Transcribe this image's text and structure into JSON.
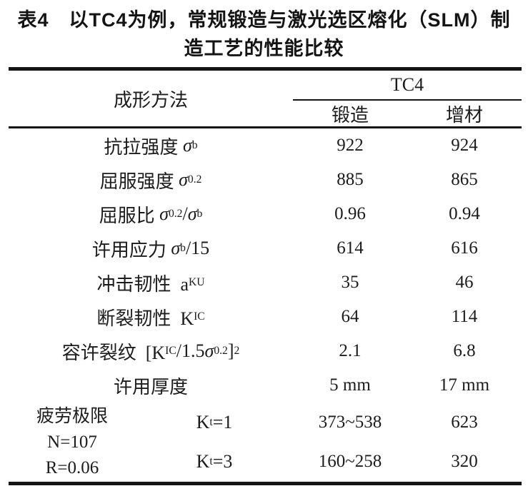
{
  "title": {
    "line1": "表4　以TC4为例，常规锻造与激光选区熔化（SLM）制",
    "line2": "造工艺的性能比较"
  },
  "header": {
    "method": "成形方法",
    "group": "TC4",
    "col_forge": "锻造",
    "col_additive": "增材"
  },
  "rows": [
    {
      "label": [
        {
          "t": "抗拉强度 "
        },
        {
          "t": "σ",
          "i": true
        },
        {
          "t": "b",
          "sub": true
        }
      ],
      "forge": "922",
      "additive": "924"
    },
    {
      "label": [
        {
          "t": "屈服强度 "
        },
        {
          "t": "σ",
          "i": true
        },
        {
          "t": "0.2",
          "sub": true
        }
      ],
      "forge": "885",
      "additive": "865"
    },
    {
      "label": [
        {
          "t": "屈服比 "
        },
        {
          "t": "σ",
          "i": true
        },
        {
          "t": "0.2",
          "sub": true
        },
        {
          "t": "/"
        },
        {
          "t": "σ",
          "i": true
        },
        {
          "t": "b",
          "sub": true
        }
      ],
      "forge": "0.96",
      "additive": "0.94"
    },
    {
      "label": [
        {
          "t": "许用应力 "
        },
        {
          "t": "σ",
          "i": true
        },
        {
          "t": "b",
          "sub": true
        },
        {
          "t": "/15"
        }
      ],
      "forge": "614",
      "additive": "616"
    },
    {
      "label": [
        {
          "t": "冲击韧性  a"
        },
        {
          "t": "KU",
          "sub": true
        }
      ],
      "forge": "35",
      "additive": "46"
    },
    {
      "label": [
        {
          "t": "断裂韧性  K"
        },
        {
          "t": "IC",
          "sub": true
        }
      ],
      "forge": "64",
      "additive": "114"
    },
    {
      "label": [
        {
          "t": "容许裂纹  [K"
        },
        {
          "t": "IC",
          "sub": true
        },
        {
          "t": "/1.5"
        },
        {
          "t": "σ",
          "i": true
        },
        {
          "t": "0.2",
          "sub": true
        },
        {
          "t": "]"
        },
        {
          "t": "2",
          "sup": true
        }
      ],
      "forge": "2.1",
      "additive": "6.8"
    },
    {
      "label": [
        {
          "t": "许用厚度"
        }
      ],
      "forge": "5 mm",
      "additive": "17 mm"
    }
  ],
  "fatigue": {
    "name_line1": "疲劳极限",
    "name_line2": "N=107",
    "name_line3": "R=0.06",
    "cases": [
      {
        "condition": [
          {
            "t": "K"
          },
          {
            "t": "t",
            "sub": true
          },
          {
            "t": "=1"
          }
        ],
        "forge": "373~538",
        "additive": "623"
      },
      {
        "condition": [
          {
            "t": "K"
          },
          {
            "t": "t",
            "sub": true
          },
          {
            "t": "=3"
          }
        ],
        "forge": "160~258",
        "additive": "320"
      }
    ]
  }
}
